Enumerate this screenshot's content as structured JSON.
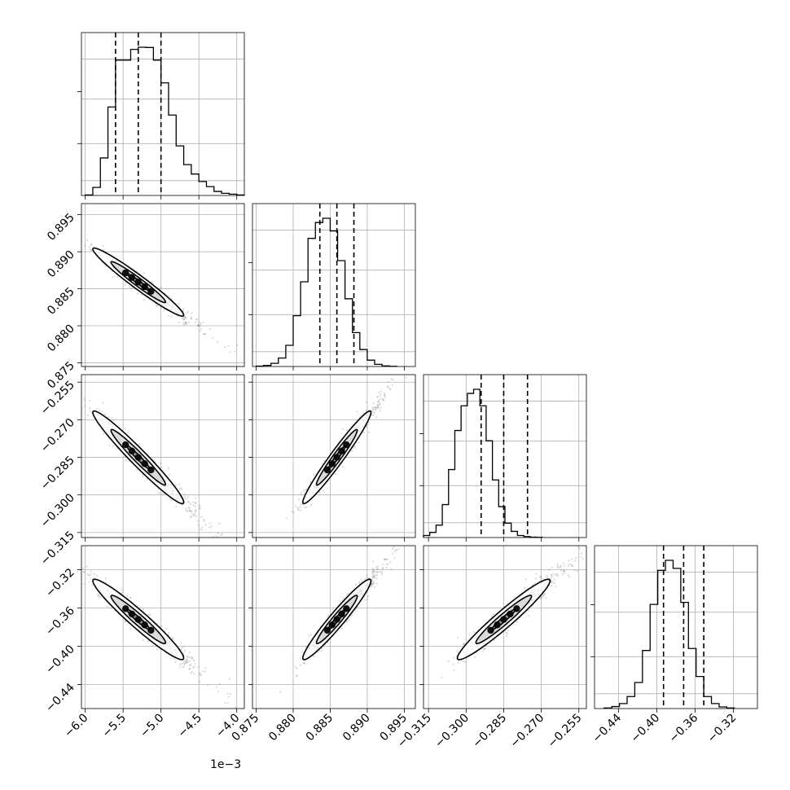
{
  "colors": {
    "axis": "#000000",
    "grid": "#b0b0b0",
    "points": "#555555",
    "contour": "#000000",
    "background": "#ffffff"
  },
  "chart_data": {
    "type": "corner",
    "title": "",
    "grid": true,
    "offset_label": "1e−3",
    "parameters": [
      {
        "name": "",
        "range": [
          -6.05,
          -3.9
        ],
        "quantiles": [
          -5.6,
          -5.3,
          -5.0
        ],
        "ticks": [
          -6.0,
          -5.5,
          -5.0,
          -4.5,
          -4.0
        ],
        "tick_labels": [
          "−6.0",
          "−5.5",
          "−5.0",
          "−4.5",
          "−4.0"
        ]
      },
      {
        "name": "",
        "range": [
          0.8745,
          0.8965
        ],
        "quantiles": [
          0.8836,
          0.8859,
          0.8882
        ],
        "ticks": [
          0.875,
          0.88,
          0.885,
          0.89,
          0.895
        ],
        "tick_labels": [
          "0.875",
          "0.880",
          "0.885",
          "0.890",
          "0.895"
        ]
      },
      {
        "name": "",
        "range": [
          -0.317,
          -0.252
        ],
        "quantiles": [
          -0.294,
          -0.285,
          -0.2755
        ],
        "ticks": [
          -0.315,
          -0.3,
          -0.285,
          -0.27,
          -0.255
        ],
        "tick_labels": [
          "−0.315",
          "−0.300",
          "−0.285",
          "−0.270",
          "−0.255"
        ]
      },
      {
        "name": "",
        "range": [
          -0.465,
          -0.295
        ],
        "quantiles": [
          -0.393,
          -0.372,
          -0.351
        ],
        "ticks": [
          -0.44,
          -0.4,
          -0.36,
          -0.32
        ],
        "tick_labels": [
          "−0.44",
          "−0.40",
          "−0.36",
          "−0.32"
        ]
      }
    ],
    "histograms": [
      {
        "parameter": 0,
        "bins_start": -6.0,
        "bin_width": 0.1,
        "counts": [
          2,
          30,
          140,
          330,
          505,
          505,
          545,
          553,
          552,
          505,
          420,
          300,
          185,
          115,
          80,
          52,
          33,
          15,
          8,
          5,
          2
        ]
      },
      {
        "parameter": 1,
        "bins_start": 0.875,
        "bin_width": 0.001,
        "counts": [
          2,
          5,
          15,
          40,
          100,
          240,
          400,
          605,
          680,
          700,
          640,
          500,
          320,
          160,
          80,
          30,
          10,
          3,
          1
        ]
      },
      {
        "parameter": 2,
        "bins_start": -0.317,
        "bin_width": 0.0025,
        "counts": [
          10,
          25,
          60,
          160,
          330,
          520,
          640,
          700,
          720,
          640,
          470,
          280,
          150,
          70,
          30,
          10,
          5,
          2,
          1
        ]
      },
      {
        "parameter": 3,
        "bins_start": -0.455,
        "bin_width": 0.008,
        "counts": [
          3,
          10,
          25,
          60,
          130,
          290,
          520,
          690,
          740,
          700,
          530,
          300,
          160,
          60,
          25,
          8,
          3
        ]
      }
    ],
    "pair_correlations": [
      {
        "x": 0,
        "y": 1,
        "rho": -0.97
      },
      {
        "x": 0,
        "y": 2,
        "rho": -0.97
      },
      {
        "x": 1,
        "y": 2,
        "rho": 0.97
      },
      {
        "x": 0,
        "y": 3,
        "rho": -0.96
      },
      {
        "x": 1,
        "y": 3,
        "rho": 0.96
      },
      {
        "x": 2,
        "y": 3,
        "rho": 0.96
      }
    ],
    "contour_levels": [
      0.5,
      1.2,
      2.0
    ]
  }
}
